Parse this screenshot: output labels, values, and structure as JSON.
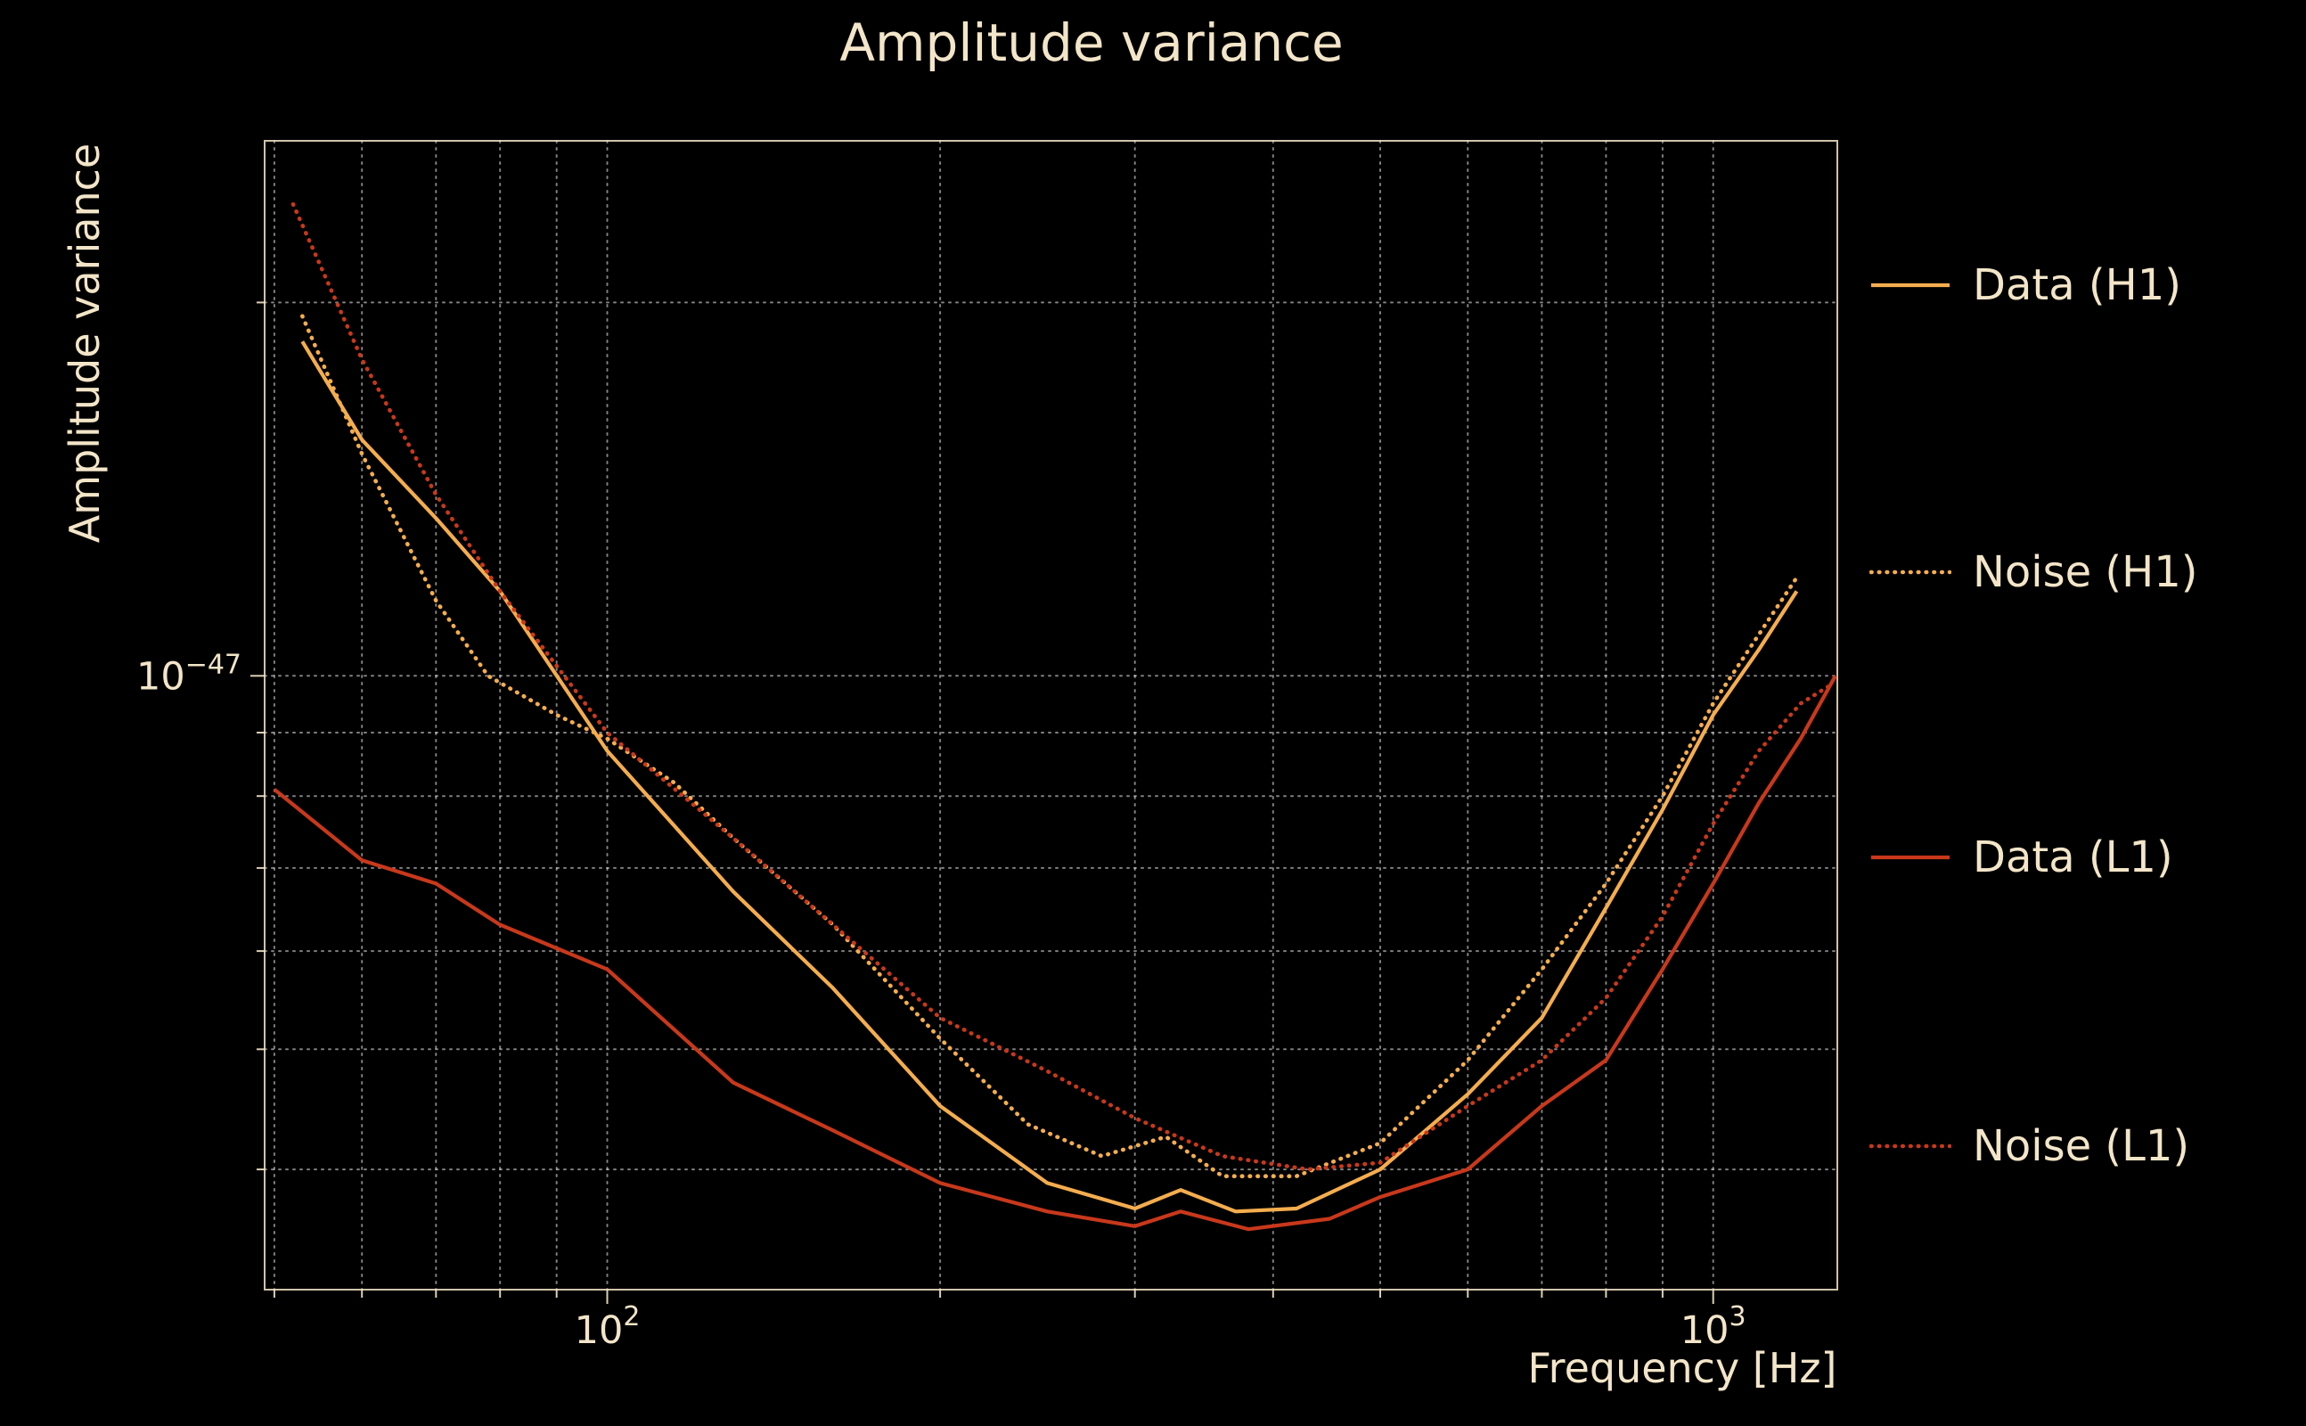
{
  "title": "Amplitude variance",
  "chart_data": {
    "type": "line",
    "title": "Amplitude variance",
    "xlabel": "Frequency [Hz]",
    "ylabel": "Amplitude variance",
    "x_scale": "log",
    "y_scale": "log",
    "xlim": [
      49,
      1295
    ],
    "ylim": [
      3.2e-48,
      2.7e-47
    ],
    "grid": true,
    "legend_position": "right-outside",
    "background": "#000000",
    "text_color": "#f3e5c8",
    "grid_color": "#ffffff",
    "colors": {
      "h1": "#f4ad4e",
      "l1": "#c8381b"
    },
    "x_ticks": [
      {
        "v": 100,
        "base": "10",
        "exp": "2"
      },
      {
        "v": 1000,
        "base": "10",
        "exp": "3"
      }
    ],
    "y_ticks": [
      {
        "v": 1e-47,
        "base": "10",
        "exp": "−47"
      }
    ],
    "series": [
      {
        "name": "Data (H1)",
        "color_key": "h1",
        "style": "solid",
        "points": [
          [
            53,
            1.86e-47
          ],
          [
            60,
            1.55e-47
          ],
          [
            70,
            1.34e-47
          ],
          [
            80,
            1.17e-47
          ],
          [
            100,
            8.7e-48
          ],
          [
            130,
            6.7e-48
          ],
          [
            160,
            5.6e-48
          ],
          [
            200,
            4.5e-48
          ],
          [
            250,
            3.9e-48
          ],
          [
            300,
            3.72e-48
          ],
          [
            330,
            3.85e-48
          ],
          [
            370,
            3.7e-48
          ],
          [
            420,
            3.72e-48
          ],
          [
            500,
            4e-48
          ],
          [
            600,
            4.6e-48
          ],
          [
            700,
            5.3e-48
          ],
          [
            800,
            6.5e-48
          ],
          [
            900,
            7.8e-48
          ],
          [
            1000,
            9.3e-48
          ],
          [
            1100,
            1.05e-47
          ],
          [
            1190,
            1.17e-47
          ]
        ]
      },
      {
        "name": "Noise (H1)",
        "color_key": "h1",
        "style": "dotted",
        "points": [
          [
            53,
            1.95e-47
          ],
          [
            60,
            1.51e-47
          ],
          [
            70,
            1.15e-47
          ],
          [
            78,
            1e-47
          ],
          [
            90,
            9.3e-48
          ],
          [
            100,
            8.9e-48
          ],
          [
            115,
            8.2e-48
          ],
          [
            130,
            7.4e-48
          ],
          [
            160,
            6.3e-48
          ],
          [
            200,
            5.1e-48
          ],
          [
            240,
            4.35e-48
          ],
          [
            280,
            4.1e-48
          ],
          [
            320,
            4.25e-48
          ],
          [
            360,
            3.95e-48
          ],
          [
            420,
            3.95e-48
          ],
          [
            500,
            4.2e-48
          ],
          [
            600,
            4.9e-48
          ],
          [
            700,
            5.8e-48
          ],
          [
            800,
            6.8e-48
          ],
          [
            900,
            8e-48
          ],
          [
            1000,
            9.5e-48
          ],
          [
            1100,
            1.08e-47
          ],
          [
            1190,
            1.2e-47
          ]
        ]
      },
      {
        "name": "Data (L1)",
        "color_key": "l1",
        "style": "solid",
        "points": [
          [
            50,
            8.1e-48
          ],
          [
            60,
            7.1e-48
          ],
          [
            70,
            6.8e-48
          ],
          [
            80,
            6.3e-48
          ],
          [
            100,
            5.8e-48
          ],
          [
            130,
            4.7e-48
          ],
          [
            160,
            4.3e-48
          ],
          [
            200,
            3.9e-48
          ],
          [
            250,
            3.7e-48
          ],
          [
            300,
            3.6e-48
          ],
          [
            330,
            3.7e-48
          ],
          [
            380,
            3.58e-48
          ],
          [
            450,
            3.65e-48
          ],
          [
            500,
            3.8e-48
          ],
          [
            600,
            4e-48
          ],
          [
            700,
            4.5e-48
          ],
          [
            800,
            4.9e-48
          ],
          [
            900,
            5.8e-48
          ],
          [
            1000,
            6.8e-48
          ],
          [
            1100,
            7.9e-48
          ],
          [
            1200,
            8.9e-48
          ],
          [
            1290,
            1e-47
          ]
        ]
      },
      {
        "name": "Noise (L1)",
        "color_key": "l1",
        "style": "dotted",
        "points": [
          [
            52,
            2.4e-47
          ],
          [
            60,
            1.8e-47
          ],
          [
            70,
            1.4e-47
          ],
          [
            80,
            1.17e-47
          ],
          [
            100,
            9e-48
          ],
          [
            130,
            7.4e-48
          ],
          [
            160,
            6.3e-48
          ],
          [
            200,
            5.3e-48
          ],
          [
            250,
            4.8e-48
          ],
          [
            300,
            4.4e-48
          ],
          [
            360,
            4.1e-48
          ],
          [
            430,
            4e-48
          ],
          [
            500,
            4.05e-48
          ],
          [
            600,
            4.5e-48
          ],
          [
            700,
            4.9e-48
          ],
          [
            800,
            5.5e-48
          ],
          [
            900,
            6.4e-48
          ],
          [
            1000,
            7.6e-48
          ],
          [
            1100,
            8.7e-48
          ],
          [
            1200,
            9.5e-48
          ],
          [
            1270,
            9.8e-48
          ]
        ]
      }
    ]
  }
}
